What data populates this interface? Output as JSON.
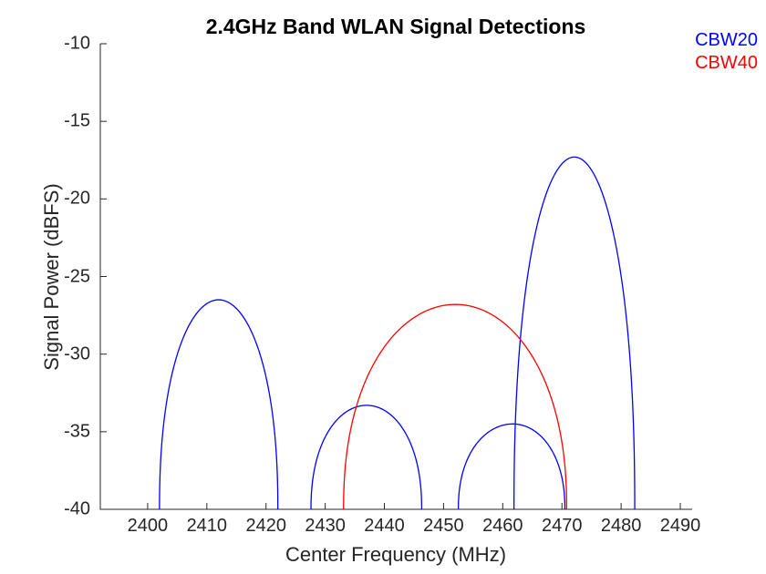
{
  "figure": {
    "background": "#ffffff",
    "axis_color": "#262626",
    "tick_label_color": "#262626",
    "title_color": "#000000"
  },
  "chart_data": {
    "type": "line",
    "title": "2.4GHz Band WLAN Signal Detections",
    "xlabel": "Center Frequency (MHz)",
    "ylabel": "Signal Power (dBFS)",
    "xlim": [
      2392,
      2492
    ],
    "ylim": [
      -40,
      -10
    ],
    "xticks": [
      2400,
      2410,
      2420,
      2430,
      2440,
      2450,
      2460,
      2470,
      2480,
      2490
    ],
    "yticks": [
      -40,
      -35,
      -30,
      -25,
      -20,
      -15,
      -10
    ],
    "grid": false,
    "noise_floor_dbfs": -40,
    "arc_exponent": 0.45,
    "legend": {
      "position": "top-right",
      "entries": [
        {
          "label": "CBW20",
          "color": "#0000ff"
        },
        {
          "label": "CBW40",
          "color": "#ff0000"
        }
      ]
    },
    "series": [
      {
        "name": "CBW20",
        "color": "#0000ff",
        "detections": [
          {
            "center_mhz": 2412.0,
            "left_mhz": 2402.0,
            "right_mhz": 2422.0,
            "peak_dbfs": -26.5
          },
          {
            "center_mhz": 2437.0,
            "left_mhz": 2427.6,
            "right_mhz": 2446.3,
            "peak_dbfs": -33.3
          },
          {
            "center_mhz": 2461.7,
            "left_mhz": 2452.5,
            "right_mhz": 2470.5,
            "peak_dbfs": -34.5
          },
          {
            "center_mhz": 2472.1,
            "left_mhz": 2461.9,
            "right_mhz": 2482.3,
            "peak_dbfs": -17.3
          }
        ]
      },
      {
        "name": "CBW40",
        "color": "#ff0000",
        "detections": [
          {
            "center_mhz": 2452.0,
            "left_mhz": 2433.1,
            "right_mhz": 2470.8,
            "peak_dbfs": -26.8
          }
        ]
      }
    ]
  }
}
